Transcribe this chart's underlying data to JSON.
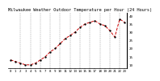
{
  "title": "Milwaukee Weather Outdoor Temperature per Hour (24 Hours)",
  "hours": [
    0,
    1,
    2,
    3,
    4,
    5,
    6,
    7,
    8,
    9,
    10,
    11,
    12,
    13,
    14,
    15,
    16,
    17,
    18,
    19,
    20,
    21,
    22,
    23
  ],
  "temps": [
    13,
    12,
    11,
    10,
    10,
    11,
    13,
    15,
    18,
    20,
    23,
    26,
    28,
    30,
    33,
    35,
    36,
    37,
    35,
    34,
    31,
    27,
    38,
    36
  ],
  "line_color": "#cc0000",
  "marker_color": "#000000",
  "background_color": "#ffffff",
  "grid_color": "#888888",
  "ytick_values": [
    10,
    15,
    20,
    25,
    30,
    35,
    40
  ],
  "ytick_labels": [
    "10",
    "15",
    "20",
    "25",
    "30",
    "35",
    "40"
  ],
  "xtick_hours": [
    0,
    1,
    2,
    3,
    4,
    5,
    6,
    7,
    8,
    9,
    10,
    11,
    12,
    13,
    14,
    15,
    16,
    17,
    18,
    19,
    20,
    21,
    22,
    23
  ],
  "vgrid_hours": [
    2,
    4,
    6,
    8,
    10,
    12,
    14,
    16,
    18,
    20,
    22
  ],
  "ylim": [
    8,
    42
  ],
  "xlim": [
    -0.5,
    23.5
  ],
  "title_fontsize": 3.8,
  "tick_fontsize": 3.0,
  "linewidth": 0.7,
  "markersize": 1.4
}
